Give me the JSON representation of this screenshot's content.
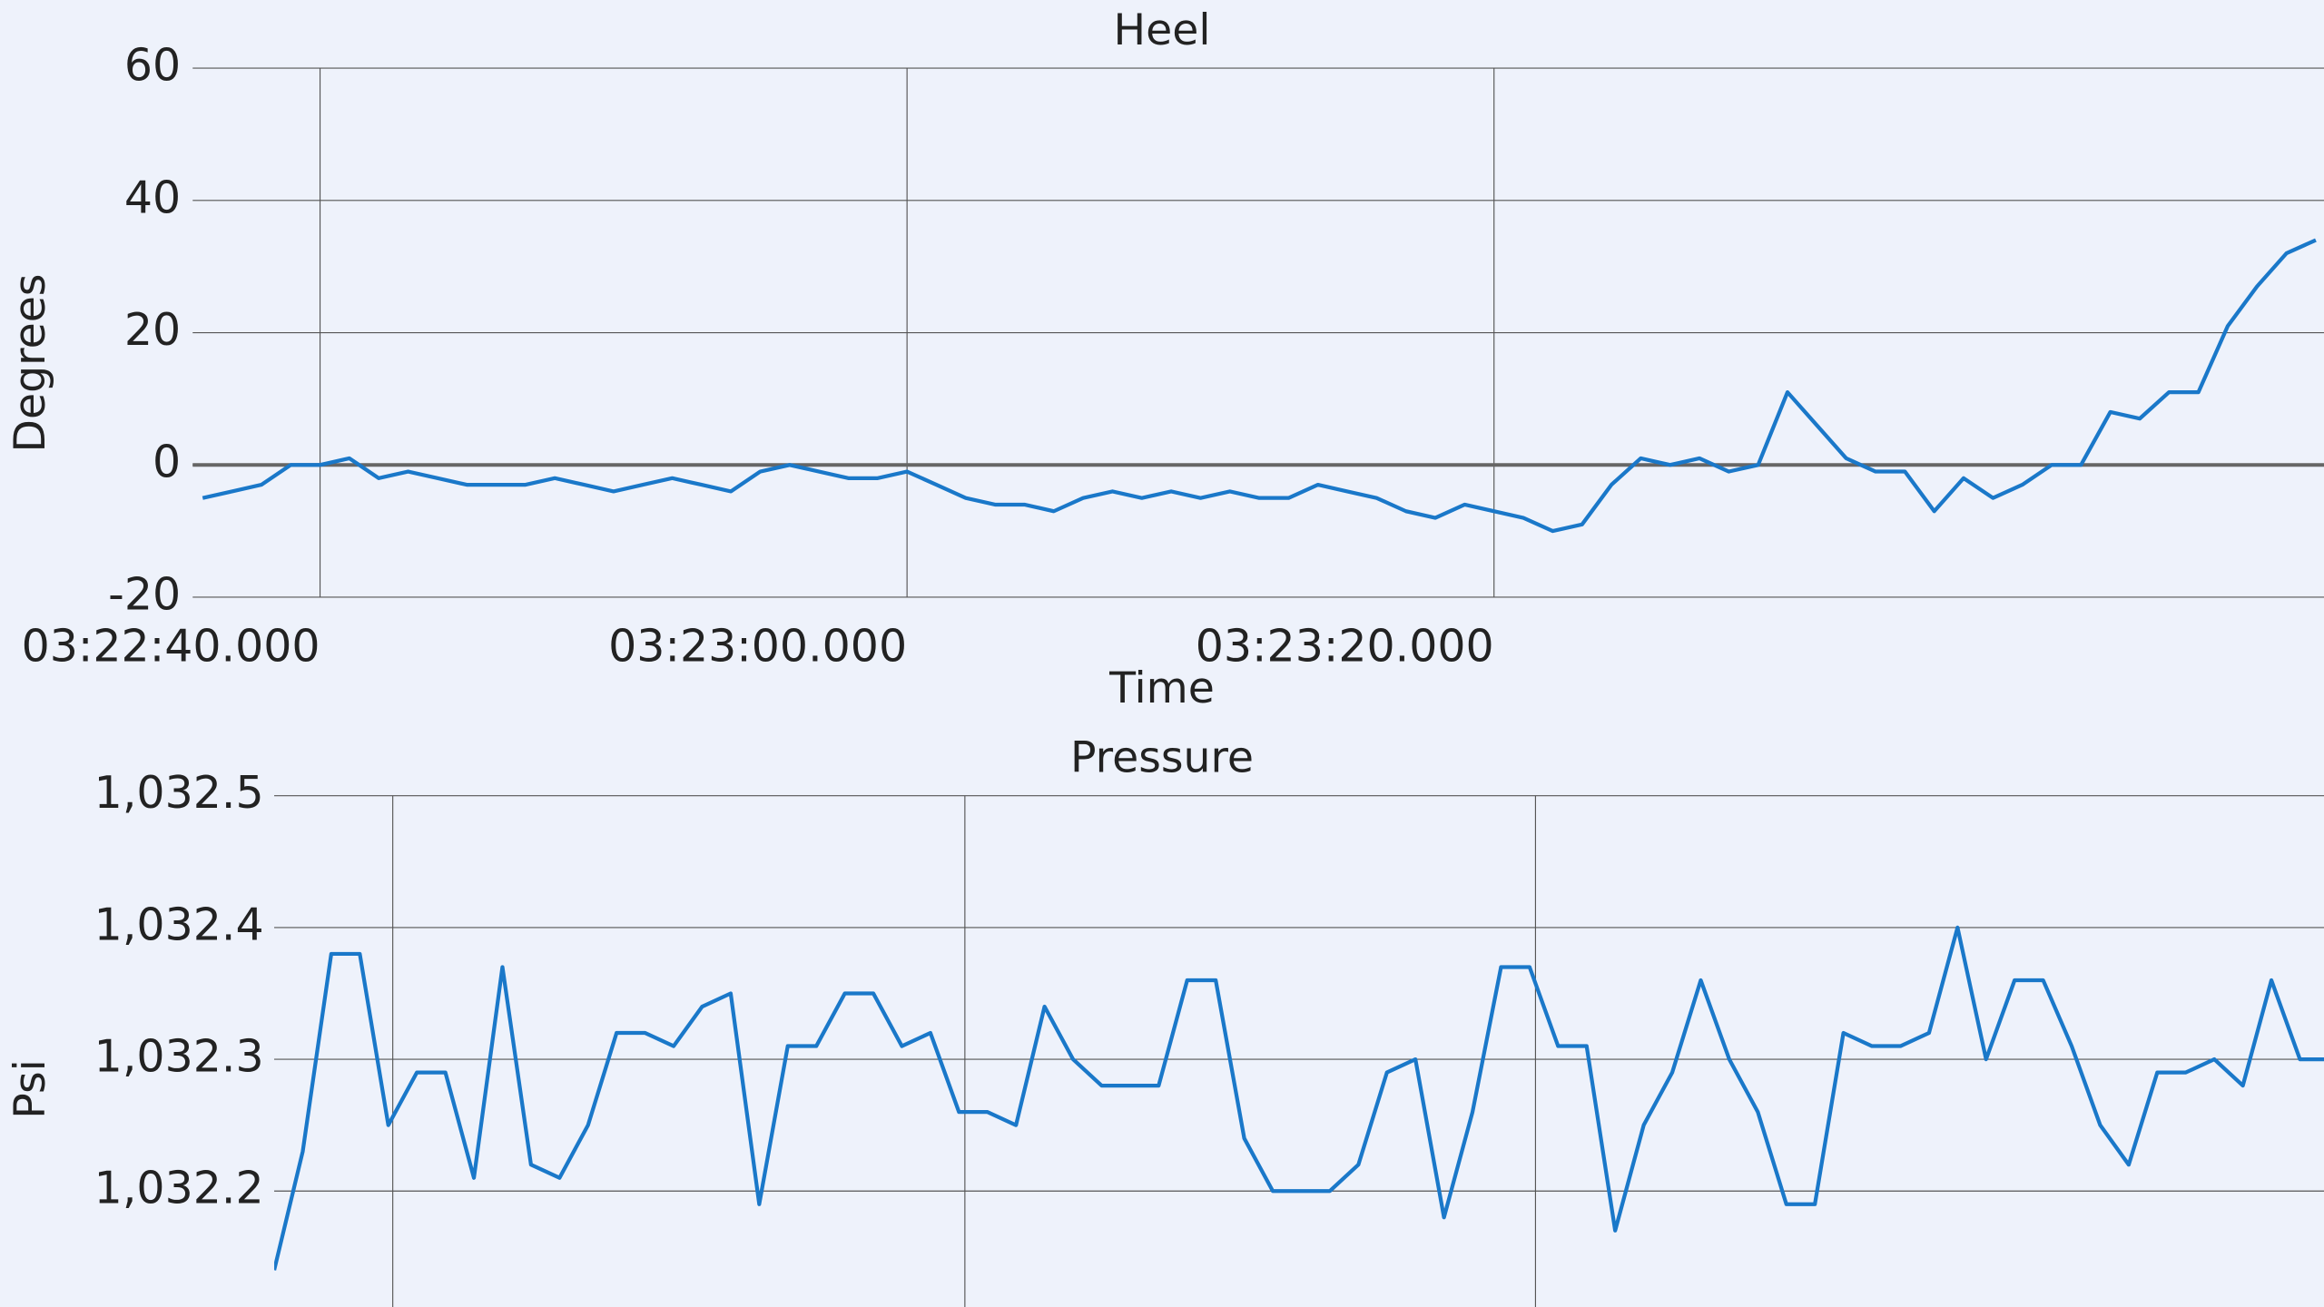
{
  "chart_data": [
    {
      "type": "line",
      "title": "Heel",
      "x_label": "Time",
      "y_label": "Degrees",
      "color": "#1a78c9",
      "grid": true,
      "zero_line": true,
      "xlim": [
        "03:22:35.660",
        "03:23:48.280"
      ],
      "xticks": [
        "03:22:40.000",
        "03:23:00.000",
        "03:23:20.000"
      ],
      "ylim": [
        -20,
        60
      ],
      "yticks": [
        -20,
        0,
        20,
        40,
        60
      ],
      "x": [
        "03:22:36.000",
        "03:22:37.000",
        "03:22:38.000",
        "03:22:39.000",
        "03:22:40.000",
        "03:22:41.000",
        "03:22:42.000",
        "03:22:43.000",
        "03:22:44.000",
        "03:22:45.000",
        "03:22:46.000",
        "03:22:47.000",
        "03:22:48.000",
        "03:22:49.000",
        "03:22:50.000",
        "03:22:51.000",
        "03:22:52.000",
        "03:22:53.000",
        "03:22:54.000",
        "03:22:55.000",
        "03:22:56.000",
        "03:22:57.000",
        "03:22:58.000",
        "03:22:59.000",
        "03:23:00.000",
        "03:23:01.000",
        "03:23:02.000",
        "03:23:03.000",
        "03:23:04.000",
        "03:23:05.000",
        "03:23:06.000",
        "03:23:07.000",
        "03:23:08.000",
        "03:23:09.000",
        "03:23:10.000",
        "03:23:11.000",
        "03:23:12.000",
        "03:23:13.000",
        "03:23:14.000",
        "03:23:15.000",
        "03:23:16.000",
        "03:23:17.000",
        "03:23:18.000",
        "03:23:19.000",
        "03:23:20.000",
        "03:23:21.000",
        "03:23:22.000",
        "03:23:23.000",
        "03:23:24.000",
        "03:23:25.000",
        "03:23:26.000",
        "03:23:27.000",
        "03:23:28.000",
        "03:23:29.000",
        "03:23:30.000",
        "03:23:31.000",
        "03:23:32.000",
        "03:23:33.000",
        "03:23:34.000",
        "03:23:35.000",
        "03:23:36.000",
        "03:23:37.000",
        "03:23:38.000",
        "03:23:39.000",
        "03:23:40.000",
        "03:23:41.000",
        "03:23:42.000",
        "03:23:43.000",
        "03:23:44.000",
        "03:23:45.000",
        "03:23:46.000",
        "03:23:47.000",
        "03:23:48.000"
      ],
      "values": [
        -5,
        -4,
        -3,
        0,
        0,
        1,
        -2,
        -1,
        -2,
        -3,
        -3,
        -3,
        -2,
        -3,
        -4,
        -3,
        -2,
        -3,
        -4,
        -1,
        0,
        -1,
        -2,
        -2,
        -1,
        -3,
        -5,
        -6,
        -6,
        -7,
        -5,
        -4,
        -5,
        -4,
        -5,
        -4,
        -5,
        -5,
        -3,
        -4,
        -5,
        -7,
        -8,
        -6,
        -7,
        -8,
        -10,
        -9,
        -3,
        1,
        0,
        1,
        -1,
        0,
        11,
        6,
        1,
        -1,
        -1,
        -7,
        -2,
        -5,
        -3,
        0,
        0,
        8,
        7,
        11,
        11,
        21,
        27,
        32,
        34
      ]
    },
    {
      "type": "line",
      "title": "Pressure",
      "y_label": "Psi",
      "color": "#1a78c9",
      "grid": true,
      "ylim": [
        1032.112,
        1032.5
      ],
      "yticks": [
        {
          "value": 1032.2,
          "label": "1,032.2"
        },
        {
          "value": 1032.3,
          "label": "1,032.3"
        },
        {
          "value": 1032.4,
          "label": "1,032.4"
        },
        {
          "value": 1032.5,
          "label": "1,032.5"
        }
      ],
      "values": [
        1032.14,
        1032.23,
        1032.38,
        1032.38,
        1032.25,
        1032.29,
        1032.29,
        1032.21,
        1032.37,
        1032.22,
        1032.21,
        1032.25,
        1032.32,
        1032.32,
        1032.31,
        1032.34,
        1032.35,
        1032.19,
        1032.31,
        1032.31,
        1032.35,
        1032.35,
        1032.31,
        1032.32,
        1032.26,
        1032.26,
        1032.25,
        1032.34,
        1032.3,
        1032.28,
        1032.28,
        1032.28,
        1032.36,
        1032.36,
        1032.24,
        1032.2,
        1032.2,
        1032.2,
        1032.22,
        1032.29,
        1032.3,
        1032.18,
        1032.26,
        1032.37,
        1032.37,
        1032.31,
        1032.31,
        1032.17,
        1032.25,
        1032.29,
        1032.36,
        1032.3,
        1032.26,
        1032.19,
        1032.19,
        1032.32,
        1032.31,
        1032.31,
        1032.32,
        1032.4,
        1032.3,
        1032.36,
        1032.36,
        1032.31,
        1032.25,
        1032.22,
        1032.29,
        1032.29,
        1032.3,
        1032.28,
        1032.36,
        1032.3,
        1032.3
      ]
    }
  ]
}
